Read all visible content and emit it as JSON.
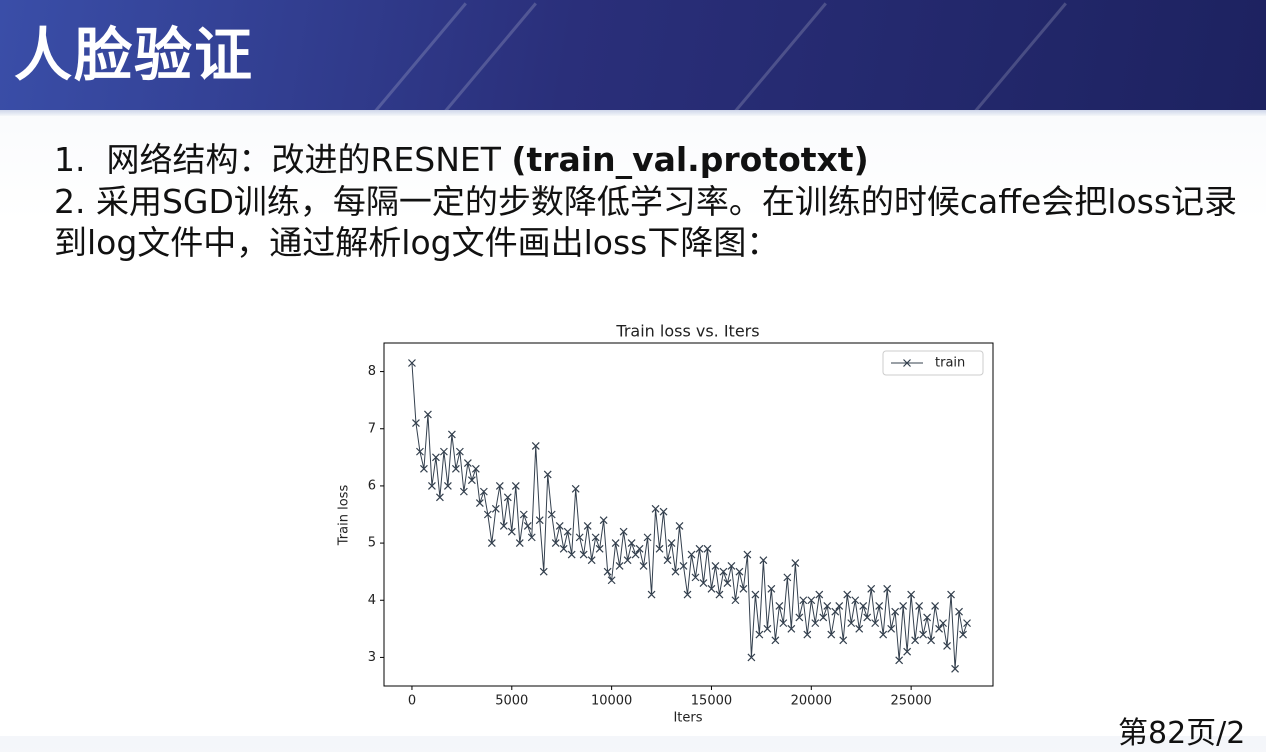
{
  "header": {
    "title": "人脸验证"
  },
  "body": {
    "item1": {
      "text": "1.  网络结构：改进的RESNET ",
      "bold": "(train_val.prototxt)"
    },
    "item2": "2.  采用SGD训练，每隔一定的步数降低学习率。在训练的时候caffe会把loss记录到log文件中，通过解析log文件画出loss下降图："
  },
  "footer": {
    "page": "第82页/2"
  },
  "chart_data": {
    "type": "line",
    "title": "Train loss  vs. Iters",
    "x_label": "Iters",
    "y_label": "Train loss",
    "x": [
      0,
      200,
      400,
      600,
      800,
      1000,
      1200,
      1400,
      1600,
      1800,
      2000,
      2200,
      2400,
      2600,
      2800,
      3000,
      3200,
      3400,
      3600,
      3800,
      4000,
      4200,
      4400,
      4600,
      4800,
      5000,
      5200,
      5400,
      5600,
      5800,
      6000,
      6200,
      6400,
      6600,
      6800,
      7000,
      7200,
      7400,
      7600,
      7800,
      8000,
      8200,
      8400,
      8600,
      8800,
      9000,
      9200,
      9400,
      9600,
      9800,
      10000,
      10200,
      10400,
      10600,
      10800,
      11000,
      11200,
      11400,
      11600,
      11800,
      12000,
      12200,
      12400,
      12600,
      12800,
      13000,
      13200,
      13400,
      13600,
      13800,
      14000,
      14200,
      14400,
      14600,
      14800,
      15000,
      15200,
      15400,
      15600,
      15800,
      16000,
      16200,
      16400,
      16600,
      16800,
      17000,
      17200,
      17400,
      17600,
      17800,
      18000,
      18200,
      18400,
      18600,
      18800,
      19000,
      19200,
      19400,
      19600,
      19800,
      20000,
      20200,
      20400,
      20600,
      20800,
      21000,
      21200,
      21400,
      21600,
      21800,
      22000,
      22200,
      22400,
      22600,
      22800,
      23000,
      23200,
      23400,
      23600,
      23800,
      24000,
      24200,
      24400,
      24600,
      24800,
      25000,
      25200,
      25400,
      25600,
      25800,
      26000,
      26200,
      26400,
      26600,
      26800,
      27000,
      27200,
      27400,
      27600,
      27800
    ],
    "series": [
      {
        "name": "train",
        "color": "#34404e",
        "marker": "x",
        "values": [
          8.15,
          7.1,
          6.6,
          6.3,
          7.25,
          6.0,
          6.5,
          5.8,
          6.6,
          6.0,
          6.9,
          6.3,
          6.6,
          5.9,
          6.4,
          6.1,
          6.3,
          5.7,
          5.9,
          5.5,
          5.0,
          5.6,
          6.0,
          5.3,
          5.8,
          5.2,
          6.0,
          5.0,
          5.5,
          5.3,
          5.1,
          6.7,
          5.4,
          4.5,
          6.2,
          5.5,
          5.0,
          5.3,
          4.9,
          5.2,
          4.8,
          5.95,
          5.1,
          4.8,
          5.3,
          4.7,
          5.1,
          4.9,
          5.4,
          4.5,
          4.35,
          5.0,
          4.6,
          5.2,
          4.7,
          5.0,
          4.8,
          4.9,
          4.6,
          5.1,
          4.1,
          5.6,
          4.9,
          5.55,
          4.7,
          5.0,
          4.5,
          5.3,
          4.6,
          4.1,
          4.8,
          4.4,
          4.9,
          4.3,
          4.9,
          4.2,
          4.6,
          4.1,
          4.5,
          4.3,
          4.6,
          4.0,
          4.5,
          4.2,
          4.8,
          3.0,
          4.1,
          3.4,
          4.7,
          3.5,
          4.2,
          3.3,
          3.9,
          3.6,
          4.4,
          3.5,
          4.65,
          3.7,
          4.0,
          3.4,
          4.0,
          3.6,
          4.1,
          3.7,
          3.9,
          3.4,
          3.8,
          3.9,
          3.3,
          4.1,
          3.6,
          4.0,
          3.5,
          3.9,
          3.7,
          4.2,
          3.6,
          3.9,
          3.4,
          4.2,
          3.5,
          3.8,
          2.95,
          3.9,
          3.1,
          4.1,
          3.3,
          3.9,
          3.4,
          3.7,
          3.3,
          3.9,
          3.5,
          3.6,
          3.2,
          4.1,
          2.8,
          3.8,
          3.4,
          3.6
        ]
      }
    ],
    "xlim": [
      -1400,
      29100
    ],
    "ylim": [
      2.5,
      8.5
    ],
    "xticks": [
      0,
      5000,
      10000,
      15000,
      20000,
      25000
    ],
    "yticks": [
      3,
      4,
      5,
      6,
      7,
      8
    ],
    "legend": "upper right",
    "grid": false
  }
}
